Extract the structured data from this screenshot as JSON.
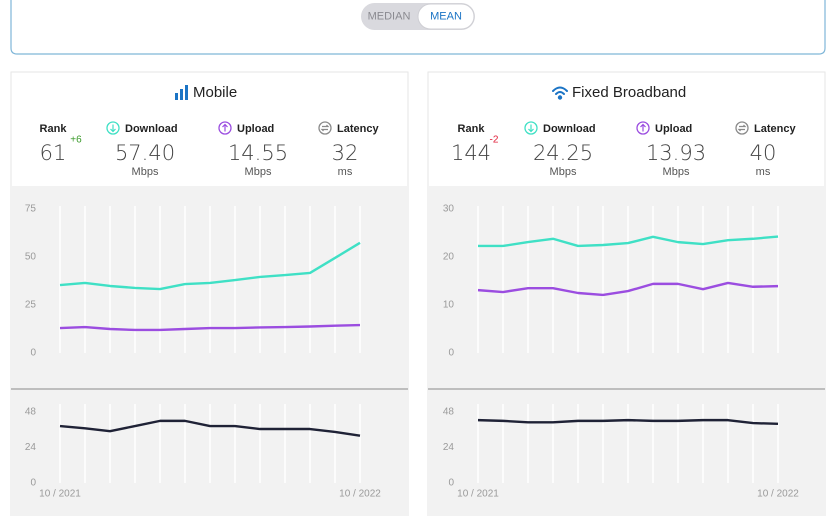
{
  "toggle": {
    "options": [
      "MEDIAN",
      "MEAN"
    ],
    "active": 1
  },
  "panels": [
    {
      "title": "Mobile",
      "stats": [
        {
          "label": "Rank",
          "value": "61",
          "change": "+6"
        },
        {
          "label": "Download",
          "value": "57.40",
          "unit": "Mbps"
        },
        {
          "label": "Upload",
          "value": "14.55",
          "unit": "Mbps"
        },
        {
          "label": "Latency",
          "value": "32",
          "unit": "ms"
        }
      ]
    },
    {
      "title": "Fixed Broadband",
      "stats": [
        {
          "label": "Rank",
          "value": "144",
          "change": "-2"
        },
        {
          "label": "Download",
          "value": "24.25",
          "unit": "Mbps"
        },
        {
          "label": "Upload",
          "value": "13.93",
          "unit": "Mbps"
        },
        {
          "label": "Latency",
          "value": "40",
          "unit": "ms"
        }
      ]
    }
  ],
  "chart_data": [
    {
      "type": "line",
      "ylim": [
        0,
        75
      ],
      "yticks": [
        0,
        25,
        50,
        75
      ],
      "grid": "x",
      "series": [
        {
          "color": "#3fe0c5",
          "values": [
            35.4,
            36.5,
            34.9,
            33.9,
            33.3,
            35.9,
            36.5,
            38,
            39.6,
            40.6,
            41.7,
            49.5,
            57.4
          ]
        },
        {
          "color": "#9b4de0",
          "values": [
            13,
            13.5,
            12.5,
            12,
            12,
            12.5,
            13,
            13,
            13.3,
            13.5,
            13.8,
            14.2,
            14.55
          ]
        }
      ]
    },
    {
      "type": "line",
      "ylim": [
        0,
        48
      ],
      "yticks": [
        0,
        24,
        48
      ],
      "grid": "x",
      "categories": [
        "10 / 2021",
        null,
        null,
        null,
        null,
        null,
        null,
        null,
        null,
        null,
        null,
        null,
        "10 / 2022"
      ],
      "series": [
        {
          "color": "#1f2236",
          "values": [
            38.5,
            37,
            35,
            38.5,
            42,
            42,
            38.5,
            38.5,
            36.5,
            36.5,
            36.5,
            34.5,
            32
          ]
        }
      ]
    },
    {
      "type": "line",
      "ylim": [
        0,
        30
      ],
      "yticks": [
        0,
        10,
        20,
        30
      ],
      "grid": "x",
      "series": [
        {
          "color": "#3fe0c5",
          "values": [
            22.3,
            22.3,
            23.1,
            23.8,
            22.3,
            22.5,
            22.9,
            24.2,
            23.1,
            22.7,
            23.5,
            23.8,
            24.25
          ]
        },
        {
          "color": "#9b4de0",
          "values": [
            13.1,
            12.7,
            13.5,
            13.5,
            12.5,
            12.1,
            12.9,
            14.4,
            14.4,
            13.3,
            14.6,
            13.8,
            13.93
          ]
        }
      ]
    },
    {
      "type": "line",
      "ylim": [
        0,
        48
      ],
      "yticks": [
        0,
        24,
        48
      ],
      "grid": "x",
      "categories": [
        "10 / 2021",
        null,
        null,
        null,
        null,
        null,
        null,
        null,
        null,
        null,
        null,
        null,
        "10 / 2022"
      ],
      "series": [
        {
          "color": "#1f2236",
          "values": [
            42.5,
            42,
            41,
            41,
            42,
            42,
            42.5,
            42,
            42,
            42.5,
            42.5,
            40.5,
            40
          ]
        }
      ]
    }
  ]
}
